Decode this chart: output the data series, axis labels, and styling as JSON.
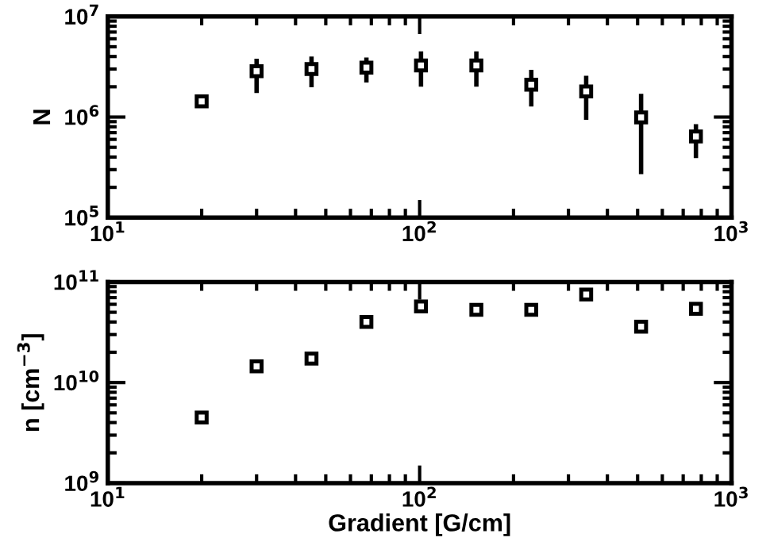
{
  "chart_data": [
    {
      "type": "scatter",
      "ylabel": "N",
      "log": "xy",
      "marker": "square",
      "grid": false,
      "legend": false,
      "x": [
        20,
        30,
        45,
        67.5,
        101,
        152,
        228,
        342,
        513,
        769
      ],
      "series": [
        {
          "color": "#000000",
          "values": [
            1430000,
            2850000,
            3000000,
            3100000,
            3260000,
            3260000,
            2100000,
            1800000,
            990000,
            640000
          ],
          "errors": [
            null,
            [
              1730000,
              3800000
            ],
            [
              1980000,
              4000000
            ],
            [
              2200000,
              3900000
            ],
            [
              2000000,
              4500000
            ],
            [
              2000000,
              4500000
            ],
            [
              1270000,
              2950000
            ],
            [
              940000,
              2570000
            ],
            [
              270000,
              1700000
            ],
            [
              390000,
              850000
            ]
          ]
        }
      ],
      "xlim": [
        10,
        1000
      ],
      "xticks": [
        {
          "value": 10,
          "label": "10$^{1}$"
        },
        {
          "value": 100,
          "label": "10$^{2}$"
        },
        {
          "value": 1000,
          "label": "10$^{3}$"
        }
      ],
      "ylim": [
        100000,
        10000000
      ],
      "yticks": [
        {
          "value": 100000,
          "label": "10$^{5}$"
        },
        {
          "value": 1000000,
          "label": "10$^{6}$"
        },
        {
          "value": 10000000,
          "label": "10$^{7}$"
        }
      ]
    },
    {
      "type": "scatter",
      "xlabel": "Gradient [G/cm]",
      "ylabel": "n [cm$^{−3}$]",
      "log": "xy",
      "marker": "square",
      "grid": false,
      "legend": false,
      "x": [
        20,
        30,
        45,
        67.5,
        101,
        152,
        228,
        342,
        513,
        769
      ],
      "series": [
        {
          "color": "#000000",
          "values": [
            4500000000,
            14500000000,
            17300000000,
            40000000000,
            57000000000,
            53000000000,
            53000000000,
            75000000000,
            36000000000,
            54000000000
          ]
        }
      ],
      "xlim": [
        10,
        1000
      ],
      "xticks": [
        {
          "value": 10,
          "label": "10$^{1}$"
        },
        {
          "value": 100,
          "label": "10$^{2}$"
        },
        {
          "value": 1000,
          "label": "10$^{3}$"
        }
      ],
      "ylim": [
        1000000000,
        100000000000
      ],
      "yticks": [
        {
          "value": 1000000000,
          "label": "10$^{9}$"
        },
        {
          "value": 10000000000,
          "label": "10$^{10}$"
        },
        {
          "value": 100000000000,
          "label": "10$^{11}$"
        }
      ]
    }
  ]
}
